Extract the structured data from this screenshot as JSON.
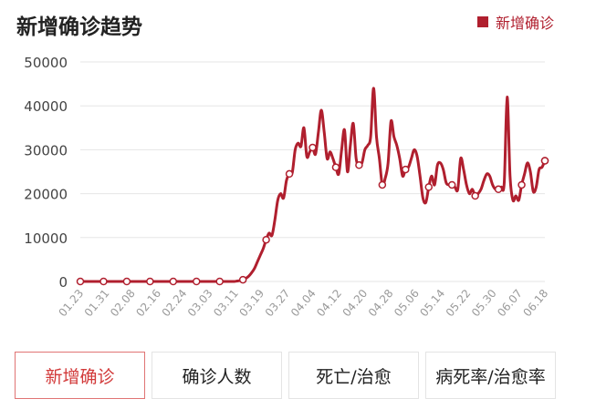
{
  "header": {
    "title": "新增确诊趋势",
    "legend_label": "新增确诊"
  },
  "tabs": [
    {
      "label": "新增确诊",
      "active": true
    },
    {
      "label": "确诊人数",
      "active": false
    },
    {
      "label": "死亡/治愈",
      "active": false
    },
    {
      "label": "病死率/治愈率",
      "active": false
    }
  ],
  "colors": {
    "series": "#b01f2e",
    "grid": "#e6e6e6",
    "tick_text": "#444444",
    "x_tick_text": "#9a9a9a",
    "active_tab": "#d23a3a"
  },
  "chart_data": {
    "type": "line",
    "title": "新增确诊趋势",
    "xlabel": "",
    "ylabel": "",
    "ylim": [
      0,
      50000
    ],
    "yticks": [
      0,
      10000,
      20000,
      30000,
      40000,
      50000
    ],
    "grid": true,
    "legend_position": "top-right",
    "x_tick_labels": [
      "01.23",
      "01.31",
      "02.08",
      "02.16",
      "02.24",
      "03.03",
      "03.11",
      "03.19",
      "03.27",
      "04.04",
      "04.12",
      "04.20",
      "04.28",
      "05.06",
      "05.14",
      "05.22",
      "05.30",
      "06.07",
      "06.18"
    ],
    "series": [
      {
        "name": "新增确诊",
        "values": [
          0,
          0,
          0,
          0,
          0,
          0,
          0,
          0,
          0,
          0,
          0,
          0,
          0,
          0,
          0,
          0,
          0,
          0,
          0,
          0,
          0,
          0,
          0,
          0,
          0,
          0,
          0,
          0,
          0,
          0,
          0,
          0,
          0,
          0,
          0,
          0,
          0,
          0,
          0,
          0,
          0,
          0,
          0,
          0,
          0,
          0,
          0,
          0,
          0,
          0,
          0,
          0,
          0,
          0,
          100,
          200,
          400,
          700,
          1200,
          2000,
          3000,
          4500,
          6000,
          7500,
          9500,
          11000,
          10500,
          14000,
          18500,
          20000,
          19000,
          23000,
          24500,
          24800,
          30000,
          31500,
          30800,
          35000,
          28500,
          29500,
          30500,
          29000,
          34000,
          39000,
          34000,
          28000,
          29500,
          28000,
          26000,
          24500,
          30000,
          34500,
          25000,
          31000,
          36000,
          28000,
          26500,
          27000,
          30000,
          31000,
          33000,
          44000,
          33000,
          28000,
          22000,
          23500,
          27000,
          36500,
          33000,
          31000,
          28000,
          24000,
          25500,
          26000,
          28000,
          30000,
          28500,
          24000,
          19000,
          18000,
          21500,
          24000,
          22000,
          26500,
          27000,
          25500,
          22500,
          22000,
          22000,
          21500,
          21000,
          28000,
          25500,
          22000,
          20000,
          21000,
          19500,
          20000,
          21000,
          23000,
          24500,
          24000,
          22000,
          21000,
          21000,
          21500,
          22500,
          42000,
          24000,
          18500,
          19500,
          18500,
          22000,
          24500,
          27000,
          25000,
          20500,
          21500,
          25500,
          26000,
          27500
        ]
      }
    ]
  }
}
